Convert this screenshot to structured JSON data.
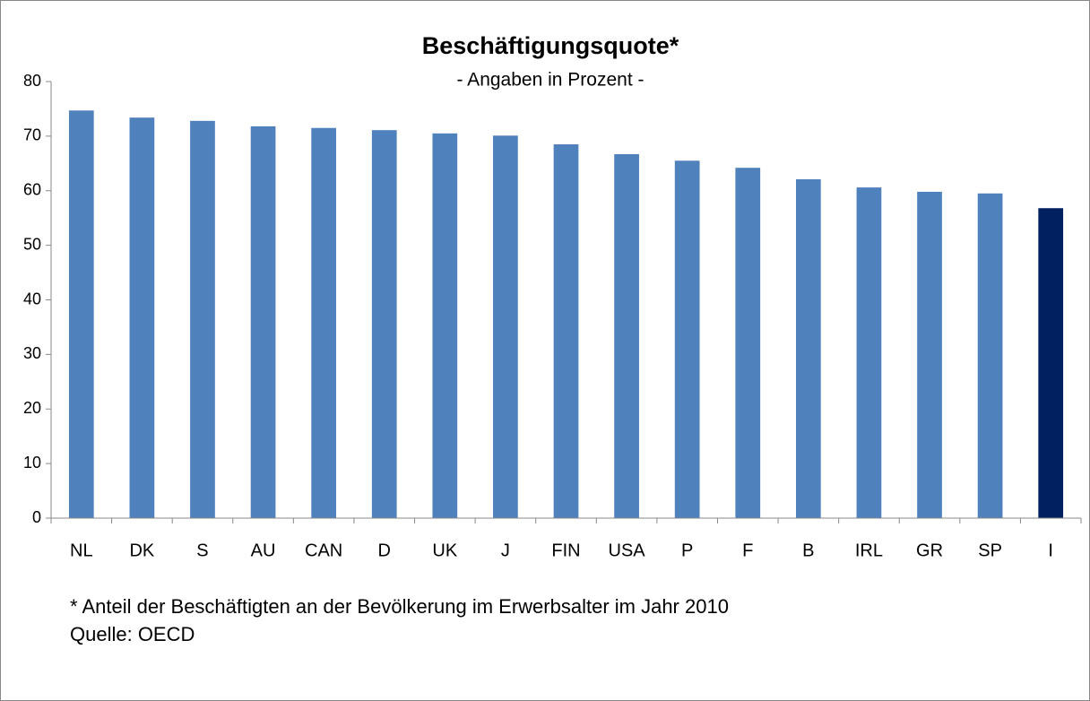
{
  "chart_data": {
    "type": "bar",
    "title": "Beschäftigungsquote*",
    "subtitle": "- Angaben in Prozent -",
    "categories": [
      "NL",
      "DK",
      "S",
      "AU",
      "CAN",
      "D",
      "UK",
      "J",
      "FIN",
      "USA",
      "P",
      "F",
      "B",
      "IRL",
      "GR",
      "SP",
      "I"
    ],
    "values": [
      74.7,
      73.4,
      72.8,
      71.8,
      71.5,
      71.1,
      70.5,
      70.1,
      68.5,
      66.7,
      65.5,
      64.2,
      62.1,
      60.6,
      59.8,
      59.5,
      56.8
    ],
    "colors": [
      "#4f81bd",
      "#4f81bd",
      "#4f81bd",
      "#4f81bd",
      "#4f81bd",
      "#4f81bd",
      "#4f81bd",
      "#4f81bd",
      "#4f81bd",
      "#4f81bd",
      "#4f81bd",
      "#4f81bd",
      "#4f81bd",
      "#4f81bd",
      "#4f81bd",
      "#4f81bd",
      "#002060"
    ],
    "ylim": [
      0,
      80
    ],
    "yticks": [
      0,
      10,
      20,
      30,
      40,
      50,
      60,
      70,
      80
    ],
    "grid": false,
    "notes": [
      "* Anteil der Beschäftigten an der Bevölkerung im Erwerbsalter im Jahr 2010",
      "Quelle: OECD"
    ]
  }
}
